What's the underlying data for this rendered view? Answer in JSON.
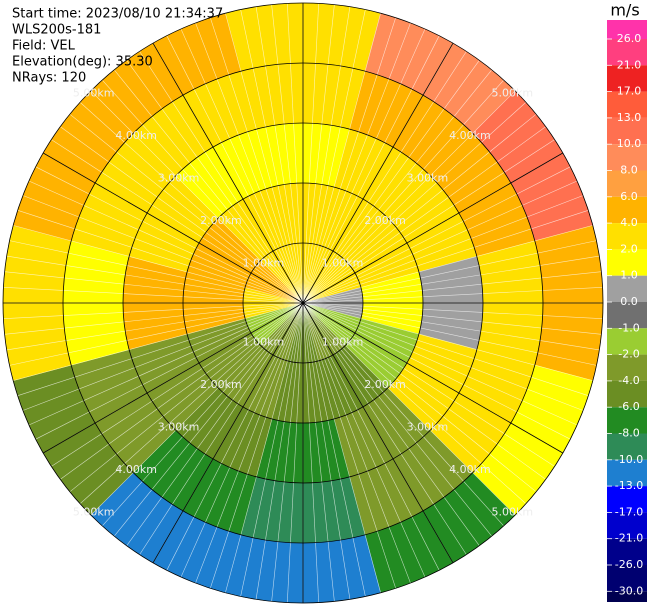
{
  "chart_data": {
    "type": "ppi",
    "header": [
      "Start time: 2023/08/10 21:34:37",
      "WLS200s-181",
      "Field: VEL",
      "Elevation(deg): 35.30",
      "NRays: 120"
    ],
    "unit": "m/s",
    "rlim": [
      0,
      5
    ],
    "rings": [
      {
        "value": 1,
        "label": "1.00km"
      },
      {
        "value": 2,
        "label": "2.00km"
      },
      {
        "value": 3,
        "label": "3.00km"
      },
      {
        "value": 4,
        "label": "4.00km"
      },
      {
        "value": 5,
        "label": "5.00km"
      }
    ],
    "field": {
      "azimuths": [
        0,
        30,
        60,
        90,
        120,
        150,
        180,
        210,
        240,
        270,
        300,
        330
      ],
      "ranges": [
        0,
        1,
        2,
        3,
        4,
        5
      ],
      "values": [
        [
          2,
          2,
          1,
          2,
          3
        ],
        [
          3,
          2,
          2,
          5,
          9
        ],
        [
          2,
          2,
          3,
          5,
          12
        ],
        [
          0,
          1,
          0,
          2,
          5
        ],
        [
          -2,
          -2,
          2,
          3,
          1
        ],
        [
          -4,
          -5,
          -4,
          -3,
          -8
        ],
        [
          -5,
          -6,
          -7,
          -9,
          -11
        ],
        [
          -4,
          -3,
          -5,
          -8,
          -11
        ],
        [
          -2,
          -3,
          -3,
          -4,
          -6
        ],
        [
          3,
          5,
          5,
          1,
          2
        ],
        [
          4,
          5,
          3,
          2,
          4
        ],
        [
          3,
          2,
          1,
          3,
          5
        ]
      ]
    },
    "colorbar": {
      "ticks": [
        {
          "value": 26,
          "label": "26.0"
        },
        {
          "value": 21,
          "label": "21.0"
        },
        {
          "value": 17,
          "label": "17.0"
        },
        {
          "value": 13,
          "label": "13.0"
        },
        {
          "value": 10,
          "label": "10.0"
        },
        {
          "value": 8,
          "label": "8.0"
        },
        {
          "value": 6,
          "label": "6.0"
        },
        {
          "value": 4,
          "label": "4.0"
        },
        {
          "value": 2,
          "label": "2.0"
        },
        {
          "value": 1,
          "label": "1.0"
        },
        {
          "value": 0,
          "label": "0.0"
        },
        {
          "value": -1,
          "label": "-1.0"
        },
        {
          "value": -2,
          "label": "-2.0"
        },
        {
          "value": -4,
          "label": "-4.0"
        },
        {
          "value": -6,
          "label": "-6.0"
        },
        {
          "value": -8,
          "label": "-8.0"
        },
        {
          "value": -10,
          "label": "-10.0"
        },
        {
          "value": -13,
          "label": "-13.0"
        },
        {
          "value": -17,
          "label": "-17.0"
        },
        {
          "value": -21,
          "label": "-21.0"
        },
        {
          "value": -26,
          "label": "-26.0"
        },
        {
          "value": -30,
          "label": "-30.0"
        }
      ],
      "colors": [
        "#ff33aa",
        "#ff3f7f",
        "#ee2222",
        "#ff5c3a",
        "#ff7050",
        "#ff8c5a",
        "#ffa040",
        "#ffb300",
        "#ffe000",
        "#ffff00",
        "#a0a0a0",
        "#707070",
        "#9acd32",
        "#7f9a2a",
        "#6b8e23",
        "#228b22",
        "#2e8b57",
        "#1e7fd0",
        "#0000ff",
        "#0000cd",
        "#00008b",
        "#000070",
        "#000050"
      ]
    }
  }
}
